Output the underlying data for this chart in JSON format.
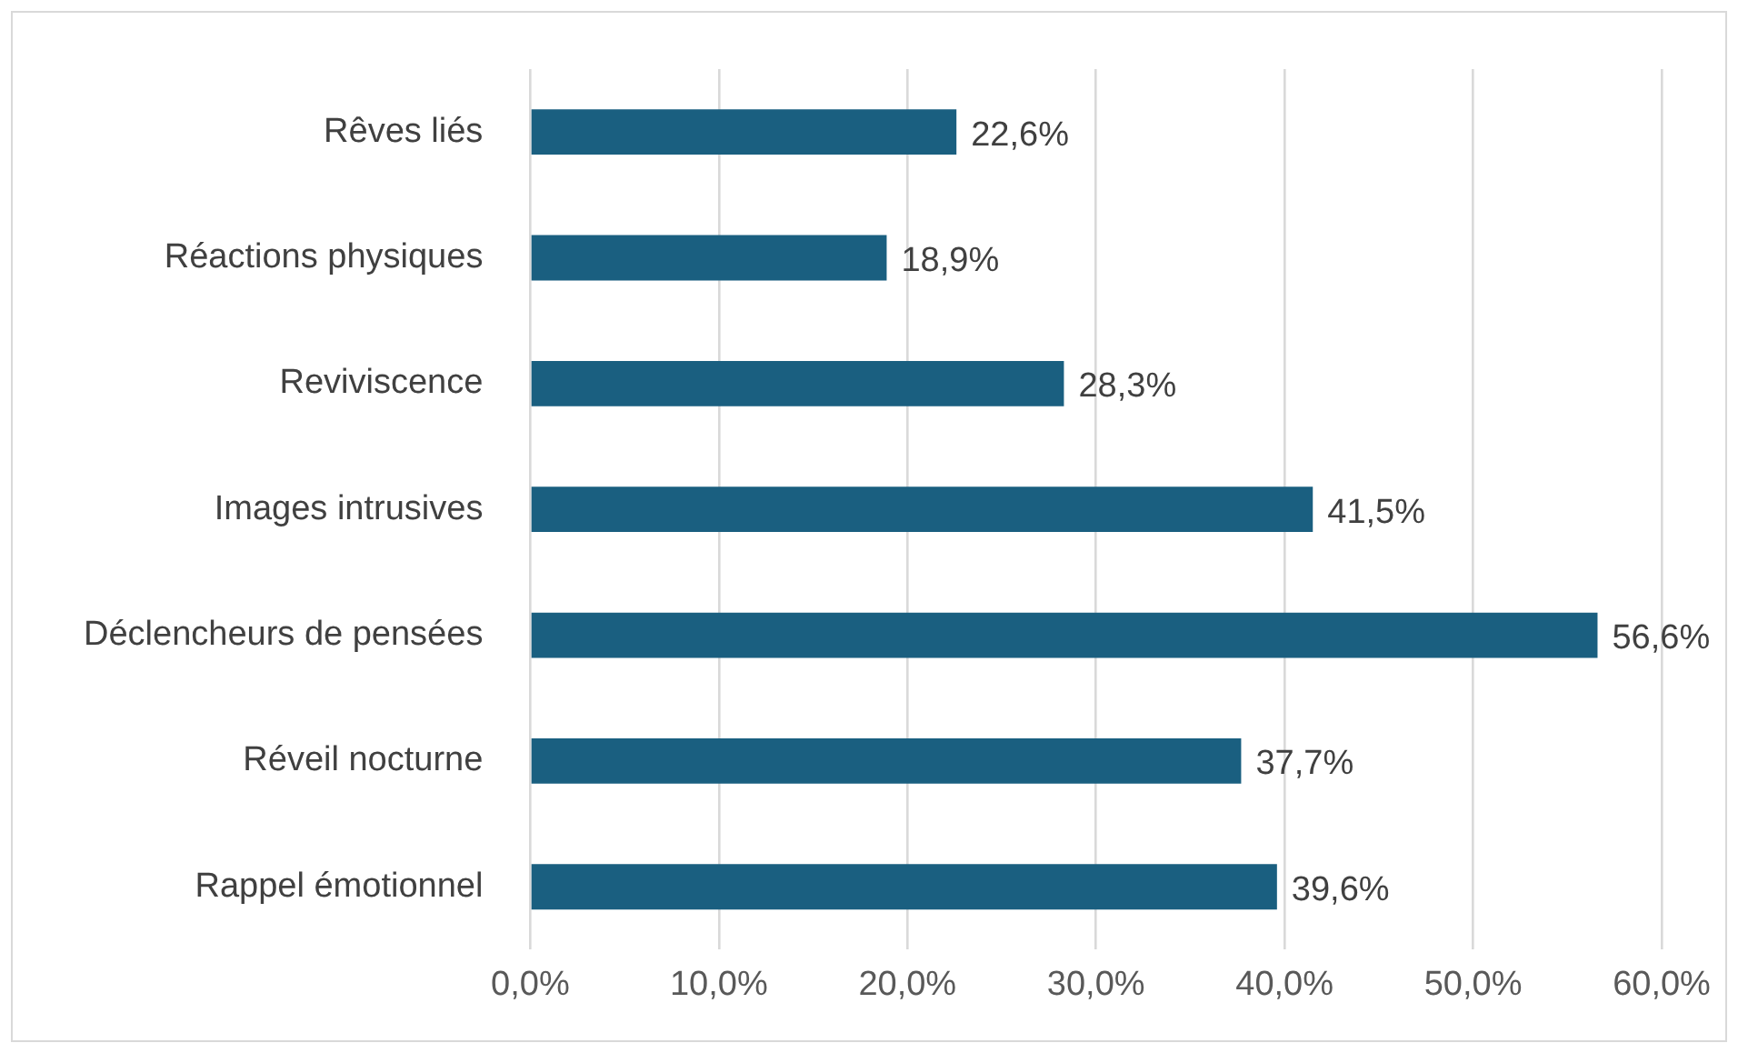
{
  "chart_data": {
    "type": "bar",
    "orientation": "horizontal",
    "categories": [
      "Rêves liés",
      "Réactions physiques",
      "Reviviscence",
      "Images intrusives",
      "Déclencheurs de pensées",
      "Réveil nocturne",
      "Rappel émotionnel"
    ],
    "values": [
      22.6,
      18.9,
      28.3,
      41.5,
      56.6,
      37.7,
      39.6
    ],
    "value_labels": [
      "22,6%",
      "18,9%",
      "28,3%",
      "41,5%",
      "56,6%",
      "37,7%",
      "39,6%"
    ],
    "color": "#1a5f80",
    "xlim": [
      0,
      60
    ],
    "xticks": [
      {
        "value": 0,
        "label": "0,0%"
      },
      {
        "value": 10,
        "label": "10,0%"
      },
      {
        "value": 20,
        "label": "20,0%"
      },
      {
        "value": 30,
        "label": "30,0%"
      },
      {
        "value": 40,
        "label": "40,0%"
      },
      {
        "value": 50,
        "label": "50,0%"
      },
      {
        "value": 60,
        "label": "60,0%"
      }
    ],
    "grid": "x"
  }
}
